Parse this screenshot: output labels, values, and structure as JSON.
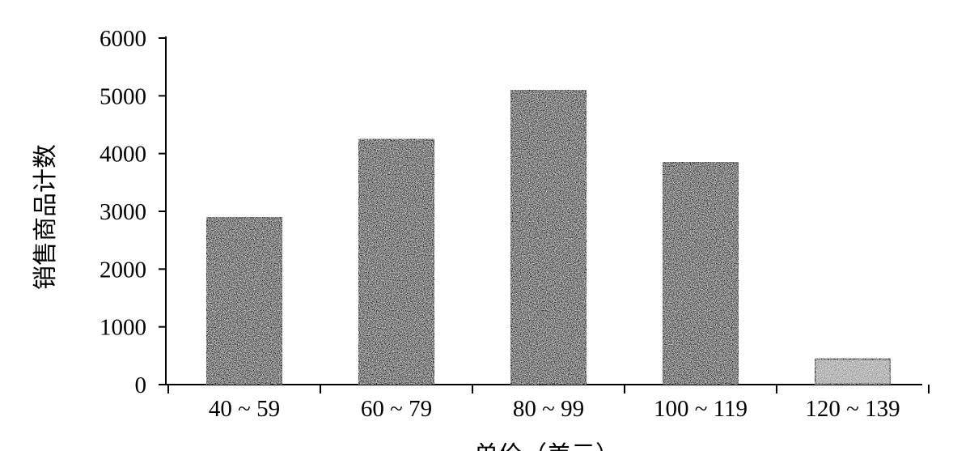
{
  "chart_data": {
    "type": "bar",
    "title": "",
    "xlabel": "单价（美元）",
    "ylabel": "销售商品计数",
    "categories": [
      "40 ~ 59",
      "60 ~ 79",
      "80 ~ 99",
      "100 ~ 119",
      "120 ~ 139"
    ],
    "values": [
      2900,
      4250,
      5100,
      3850,
      450
    ],
    "ylim": [
      0,
      6000
    ],
    "yticks": [
      0,
      1000,
      2000,
      3000,
      4000,
      5000,
      6000
    ],
    "grid": false,
    "legend": "none",
    "colors": {
      "bar_dark": "#2a2a2a",
      "bar_light": "#9a9a9a",
      "bar_border": "#000000",
      "axis": "#000000"
    }
  }
}
